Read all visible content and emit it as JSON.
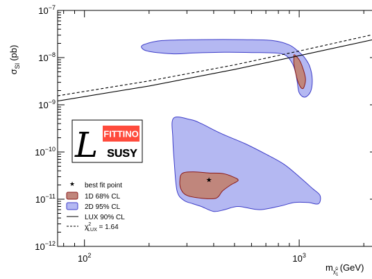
{
  "chart_data": {
    "type": "scatter",
    "xlabel": "m",
    "xlabel_sub": "χ̃",
    "xlabel_subsub": "1",
    "xlabel_supsup": "0",
    "xlabel_unit": "(GeV)",
    "ylabel": "σ",
    "ylabel_sub": "SI",
    "ylabel_unit": "(pb)",
    "x_scale": "log",
    "y_scale": "log",
    "xlim": [
      75,
      2300
    ],
    "ylim": [
      1e-12,
      1e-07
    ],
    "x_ticks": [
      {
        "value": 100,
        "base": "10",
        "exp": "2"
      },
      {
        "value": 1000,
        "base": "10",
        "exp": "3"
      }
    ],
    "y_ticks": [
      {
        "value": 1e-07,
        "base": "10",
        "exp": "−7"
      },
      {
        "value": 1e-08,
        "base": "10",
        "exp": "−8"
      },
      {
        "value": 1e-09,
        "base": "10",
        "exp": "−9"
      },
      {
        "value": 1e-10,
        "base": "10",
        "exp": "−10"
      },
      {
        "value": 1e-11,
        "base": "10",
        "exp": "−11"
      },
      {
        "value": 1e-12,
        "base": "10",
        "exp": "−12"
      }
    ],
    "best_fit_point": {
      "x": 380,
      "y": 2.5e-11
    },
    "contour_2d_95_upper": [
      [
        190,
        1.9e-08
      ],
      [
        230,
        2.3e-08
      ],
      [
        350,
        2.4e-08
      ],
      [
        550,
        2.4e-08
      ],
      [
        750,
        2.3e-08
      ],
      [
        900,
        1.85e-08
      ],
      [
        1000,
        1.3e-08
      ],
      [
        1060,
        1e-08
      ],
      [
        1120,
        6.5e-09
      ],
      [
        1150,
        3.5e-09
      ],
      [
        1130,
        1.9e-09
      ],
      [
        1060,
        1.45e-09
      ],
      [
        1000,
        1.8e-09
      ],
      [
        980,
        3e-09
      ],
      [
        960,
        5e-09
      ],
      [
        930,
        7.5e-09
      ],
      [
        870,
        1.1e-08
      ],
      [
        780,
        1.25e-08
      ],
      [
        600,
        1.28e-08
      ],
      [
        450,
        1.3e-08
      ],
      [
        320,
        1.25e-08
      ],
      [
        260,
        1.2e-08
      ],
      [
        200,
        1.35e-08
      ],
      [
        185,
        1.6e-08
      ]
    ],
    "contour_1d_68_upper": [
      [
        950,
        1.15e-08
      ],
      [
        1000,
        9e-09
      ],
      [
        1040,
        6e-09
      ],
      [
        1070,
        3.5e-09
      ],
      [
        1050,
        2.3e-09
      ],
      [
        1020,
        2.3e-09
      ],
      [
        985,
        3.2e-09
      ],
      [
        960,
        5e-09
      ],
      [
        945,
        7.5e-09
      ],
      [
        945,
        1e-08
      ]
    ],
    "contour_2d_95_lower": [
      [
        260,
        5.2e-10
      ],
      [
        310,
        4.9e-10
      ],
      [
        350,
        4e-10
      ],
      [
        430,
        2.5e-10
      ],
      [
        560,
        1.5e-10
      ],
      [
        700,
        9e-11
      ],
      [
        850,
        5.5e-11
      ],
      [
        1000,
        3e-11
      ],
      [
        1150,
        1.7e-11
      ],
      [
        1250,
        1.2e-11
      ],
      [
        1230,
        8e-12
      ],
      [
        1100,
        8.5e-12
      ],
      [
        950,
        8.5e-12
      ],
      [
        800,
        7e-12
      ],
      [
        650,
        6e-12
      ],
      [
        520,
        7e-12
      ],
      [
        450,
        6e-12
      ],
      [
        400,
        5.5e-12
      ],
      [
        350,
        7e-12
      ],
      [
        320,
        8e-12
      ],
      [
        290,
        9.5e-12
      ],
      [
        270,
        1.5e-11
      ],
      [
        262,
        6e-11
      ],
      [
        258,
        2e-10
      ]
    ],
    "contour_1d_68_lower": [
      [
        285,
        3.5e-11
      ],
      [
        320,
        3.8e-11
      ],
      [
        380,
        3.6e-11
      ],
      [
        440,
        3.5e-11
      ],
      [
        490,
        3e-11
      ],
      [
        520,
        2.5e-11
      ],
      [
        480,
        2e-11
      ],
      [
        440,
        1.5e-11
      ],
      [
        410,
        1.05e-11
      ],
      [
        350,
        1.05e-11
      ],
      [
        300,
        1.2e-11
      ],
      [
        282,
        1.6e-11
      ],
      [
        278,
        2.4e-11
      ]
    ],
    "lux_90_line": [
      [
        75,
        1.2e-09
      ],
      [
        200,
        2.5e-09
      ],
      [
        500,
        5.6e-09
      ],
      [
        1000,
        1.1e-08
      ],
      [
        2300,
        2.5e-08
      ]
    ],
    "chi2_lux_line": [
      [
        75,
        1.55e-09
      ],
      [
        200,
        3.2e-09
      ],
      [
        500,
        7e-09
      ],
      [
        1000,
        1.38e-08
      ],
      [
        2300,
        3.2e-08
      ]
    ],
    "colors": {
      "contour_2d": "#b4b8f2",
      "contour_2d_edge": "#3c3cc8",
      "contour_1d": "#c0867c",
      "contour_1d_edge": "#8a1a1a",
      "logo_red": "#ff4b3c"
    },
    "legend": {
      "placement": "bottom-left",
      "entries": [
        {
          "key": "best_fit",
          "label": "best fit point"
        },
        {
          "key": "c1d",
          "label": "1D 68% CL"
        },
        {
          "key": "c2d",
          "label": "2D 95% CL"
        },
        {
          "key": "lux",
          "label": "LUX 90% CL"
        },
        {
          "key": "chi2",
          "label_main": "χ",
          "label_sup": "2",
          "label_sub": "LUX",
          "label_rest": " = 1.64"
        }
      ]
    },
    "logo": {
      "top": "FITTINO",
      "bottom": "SUSY",
      "glyph": "L"
    }
  }
}
